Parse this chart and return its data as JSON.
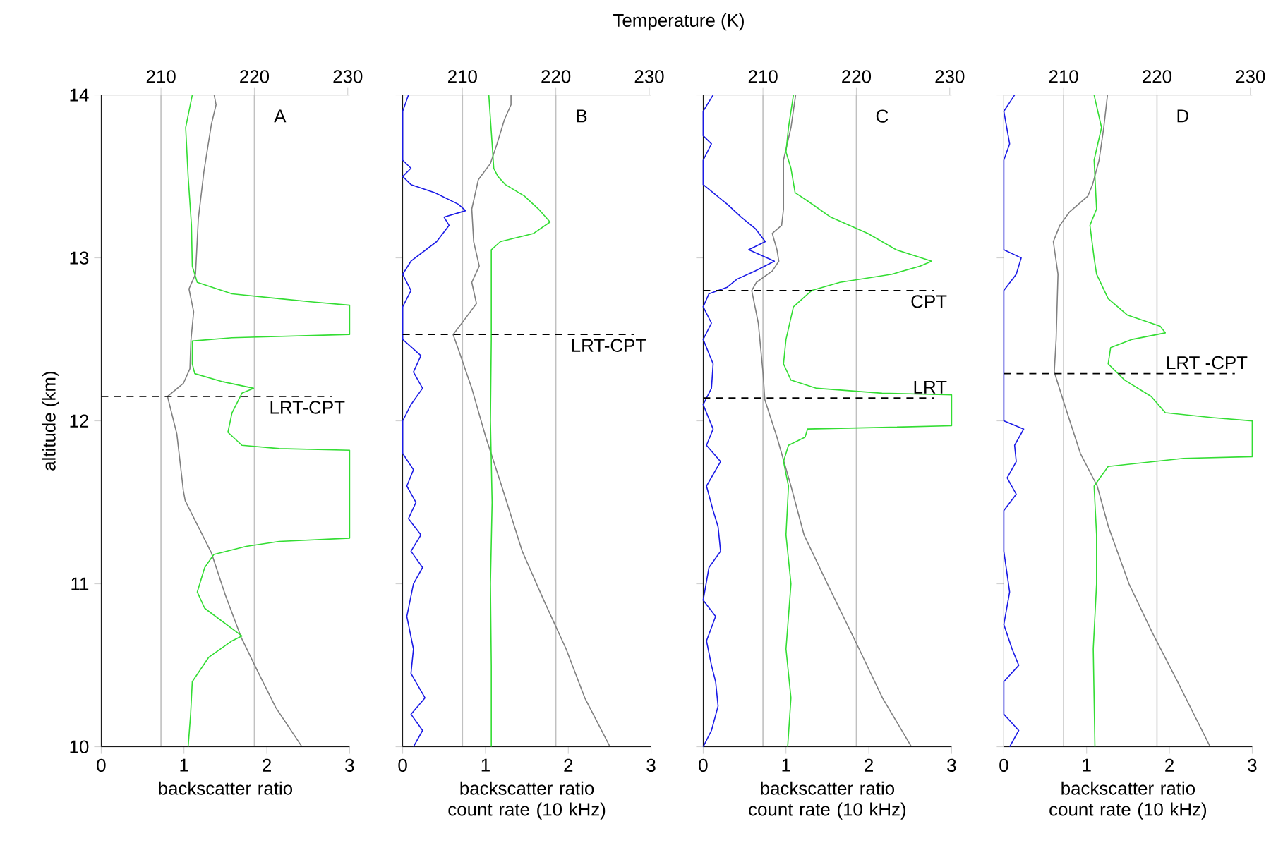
{
  "chart_data": [
    {
      "type": "line",
      "orientation": "horizontal",
      "x2label": "Temperature (K)",
      "ylabel": "altitude (km)",
      "xlabel": "backscatter ratio",
      "xlim": [
        0,
        3
      ],
      "xticks": [
        0,
        1,
        2,
        3
      ],
      "x2lim": [
        203.6,
        230.2
      ],
      "x2ticks": [
        210,
        220,
        230
      ],
      "ylim": [
        10,
        14
      ],
      "yticks": [
        10,
        11,
        12,
        13,
        14
      ],
      "annotations": [
        "A"
      ],
      "ref_lines": [
        {
          "axis": "x2",
          "value": 210,
          "color": "#c0c0c0"
        },
        {
          "axis": "x2",
          "value": 220,
          "color": "#c0c0c0"
        },
        {
          "axis": "y",
          "value": 12.15,
          "label": "LRT-CPT",
          "line_style": "dashed",
          "color": "#000000"
        }
      ],
      "series": [
        {
          "color": "#33dd33",
          "x": [
            14.0,
            13.8,
            13.5,
            13.2,
            12.95,
            12.85,
            12.78,
            12.75,
            12.73,
            12.71,
            12.53,
            12.51,
            12.49,
            12.35,
            12.29,
            12.24,
            12.2,
            12.17,
            12.05,
            11.93,
            11.85,
            11.83,
            11.82,
            11.28,
            11.26,
            11.23,
            11.18,
            11.1,
            10.95,
            10.85,
            10.68,
            10.65,
            10.55,
            10.4,
            10.2,
            10.0
          ],
          "values": [
            1.1,
            1.02,
            1.05,
            1.09,
            1.1,
            1.16,
            1.58,
            2.15,
            2.55,
            3.0,
            3.0,
            1.58,
            1.1,
            1.1,
            1.13,
            1.47,
            1.84,
            1.7,
            1.58,
            1.53,
            1.7,
            2.15,
            3.0,
            3.0,
            2.15,
            1.75,
            1.36,
            1.25,
            1.16,
            1.25,
            1.7,
            1.58,
            1.3,
            1.1,
            1.08,
            1.05
          ]
        },
        {
          "color": "#808080",
          "axis": "x2",
          "x": [
            14.0,
            13.94,
            13.82,
            13.53,
            13.24,
            12.9,
            12.81,
            12.67,
            12.49,
            12.32,
            12.23,
            12.15,
            11.92,
            11.57,
            11.51,
            11.19,
            10.93,
            10.67,
            10.47,
            10.24,
            10.0
          ],
          "values": [
            215.7,
            215.9,
            215.4,
            214.6,
            214.0,
            213.7,
            213.0,
            213.5,
            213.2,
            213.1,
            212.4,
            210.7,
            211.7,
            212.4,
            212.6,
            215.4,
            216.9,
            218.6,
            220.3,
            222.3,
            225.1
          ]
        }
      ]
    },
    {
      "type": "line",
      "orientation": "horizontal",
      "xlabel": "backscatter ratio count rate (10 kHz)",
      "xlim": [
        0,
        3
      ],
      "xticks": [
        0,
        1,
        2,
        3
      ],
      "x2lim": [
        203.6,
        230.2
      ],
      "x2ticks": [
        210,
        220,
        230
      ],
      "ylim": [
        10,
        14
      ],
      "yticks": [
        10,
        11,
        12,
        13,
        14
      ],
      "tick_labels": "x",
      "annotations": [
        "B"
      ],
      "ref_lines": [
        {
          "axis": "x2",
          "value": 210,
          "color": "#c0c0c0"
        },
        {
          "axis": "x2",
          "value": 220,
          "color": "#c0c0c0"
        },
        {
          "axis": "y",
          "value": 12.53,
          "label": "LRT-CPT",
          "line_style": "dashed",
          "color": "#000000"
        }
      ],
      "series": [
        {
          "color": "#1a1ae6",
          "x": [
            14.0,
            13.9,
            13.6,
            13.55,
            13.5,
            13.45,
            13.4,
            13.33,
            13.29,
            13.25,
            13.2,
            13.1,
            12.98,
            12.9,
            12.8,
            12.7,
            12.5,
            12.4,
            12.3,
            12.2,
            12.1,
            12.0,
            11.8,
            11.7,
            11.6,
            11.5,
            11.4,
            11.3,
            11.2,
            11.1,
            11.0,
            10.8,
            10.6,
            10.45,
            10.3,
            10.2,
            10.1,
            10.0
          ],
          "values": [
            0.07,
            0,
            0,
            0.1,
            0,
            0.1,
            0.39,
            0.67,
            0.76,
            0.5,
            0.56,
            0.41,
            0.1,
            0,
            0.1,
            0,
            0,
            0.22,
            0.13,
            0.24,
            0.1,
            0,
            0,
            0.13,
            0.05,
            0.16,
            0.07,
            0.22,
            0.1,
            0.24,
            0.13,
            0.05,
            0.13,
            0.1,
            0.27,
            0.1,
            0.24,
            0.13
          ]
        },
        {
          "color": "#33dd33",
          "x": [
            14.0,
            13.7,
            13.55,
            13.5,
            13.45,
            13.38,
            13.3,
            13.22,
            13.15,
            13.1,
            13.05,
            12.5,
            12.0,
            11.5,
            11.0,
            10.5,
            10.0
          ],
          "values": [
            1.04,
            1.08,
            1.1,
            1.15,
            1.24,
            1.47,
            1.64,
            1.78,
            1.58,
            1.18,
            1.07,
            1.07,
            1.06,
            1.08,
            1.06,
            1.07,
            1.07
          ]
        },
        {
          "color": "#808080",
          "axis": "x2",
          "x": [
            14.0,
            13.94,
            13.85,
            13.7,
            13.58,
            13.48,
            13.3,
            13.1,
            12.95,
            12.85,
            12.72,
            12.62,
            12.53,
            12.45,
            12.2,
            11.9,
            11.6,
            11.2,
            10.9,
            10.6,
            10.3,
            10.0
          ],
          "values": [
            215.2,
            215.2,
            214.5,
            213.7,
            213.0,
            211.7,
            211.0,
            211.2,
            211.8,
            211.0,
            211.5,
            210.2,
            209.0,
            209.5,
            211.0,
            212.5,
            214.2,
            216.4,
            218.7,
            221.1,
            223.1,
            225.8
          ]
        }
      ]
    },
    {
      "type": "line",
      "orientation": "horizontal",
      "xlabel": "backscatter ratio count rate (10 kHz)",
      "xlim": [
        0,
        3
      ],
      "xticks": [
        0,
        1,
        2,
        3
      ],
      "x2lim": [
        203.6,
        230.2
      ],
      "x2ticks": [
        210,
        220,
        230
      ],
      "ylim": [
        10,
        14
      ],
      "yticks": [
        10,
        11,
        12,
        13,
        14
      ],
      "tick_labels": "x",
      "annotations": [
        "C"
      ],
      "ref_lines": [
        {
          "axis": "x2",
          "value": 210,
          "color": "#c0c0c0"
        },
        {
          "axis": "x2",
          "value": 220,
          "color": "#c0c0c0"
        },
        {
          "axis": "y",
          "value": 12.8,
          "label": "CPT",
          "line_style": "dashed",
          "color": "#000000"
        },
        {
          "axis": "y",
          "value": 12.14,
          "label": "LRT",
          "line_style": "dashed",
          "color": "#000000"
        }
      ],
      "series": [
        {
          "color": "#1a1ae6",
          "x": [
            14.0,
            13.9,
            13.75,
            13.7,
            13.6,
            13.45,
            13.4,
            13.33,
            13.25,
            13.18,
            13.1,
            13.05,
            12.98,
            12.92,
            12.87,
            12.82,
            12.78,
            12.7,
            12.6,
            12.5,
            12.35,
            12.2,
            12.1,
            11.95,
            11.85,
            11.75,
            11.6,
            11.45,
            11.35,
            11.2,
            11.1,
            10.9,
            10.8,
            10.65,
            10.5,
            10.4,
            10.25,
            10.1,
            10.0
          ],
          "values": [
            0.12,
            0,
            0,
            0.1,
            0,
            0,
            0.12,
            0.29,
            0.46,
            0.63,
            0.75,
            0.55,
            0.86,
            0.63,
            0.41,
            0.29,
            0.07,
            0,
            0.1,
            0,
            0.12,
            0.1,
            0,
            0.12,
            0.04,
            0.21,
            0.04,
            0.12,
            0.18,
            0.21,
            0.07,
            0,
            0.15,
            0.04,
            0.1,
            0.15,
            0.18,
            0.1,
            0
          ]
        },
        {
          "color": "#33dd33",
          "x": [
            14.0,
            13.8,
            13.65,
            13.55,
            13.4,
            13.35,
            13.25,
            13.15,
            13.05,
            12.98,
            12.95,
            12.9,
            12.85,
            12.8,
            12.7,
            12.5,
            12.35,
            12.25,
            12.2,
            12.17,
            12.16,
            11.97,
            11.96,
            11.95,
            11.9,
            11.85,
            11.75,
            11.6,
            11.3,
            11.0,
            10.6,
            10.3,
            10.0
          ],
          "values": [
            1.09,
            1.03,
            1.0,
            1.06,
            1.11,
            1.26,
            1.54,
            1.99,
            2.33,
            2.76,
            2.62,
            2.28,
            1.65,
            1.31,
            1.09,
            1.0,
            0.97,
            1.06,
            1.37,
            2.16,
            3.0,
            3.0,
            2.16,
            1.26,
            1.23,
            1.03,
            0.97,
            1.03,
            1.0,
            1.06,
            1.0,
            1.06,
            1.02
          ]
        },
        {
          "color": "#808080",
          "axis": "x2",
          "x": [
            14.0,
            13.8,
            13.6,
            13.3,
            13.2,
            13.15,
            13.05,
            12.98,
            12.92,
            12.85,
            12.8,
            12.6,
            12.3,
            12.13,
            11.9,
            11.6,
            11.3,
            11.0,
            10.6,
            10.3,
            10.0
          ],
          "values": [
            213.5,
            213.0,
            212.2,
            212.2,
            212.0,
            211.0,
            211.5,
            211.7,
            211.0,
            209.3,
            208.8,
            209.5,
            210.0,
            210.2,
            211.5,
            213.0,
            214.4,
            216.9,
            220.3,
            222.8,
            225.9
          ]
        }
      ]
    },
    {
      "type": "line",
      "orientation": "horizontal",
      "xlabel": "backscatter ratio count rate (10 kHz)",
      "xlim": [
        0,
        3
      ],
      "xticks": [
        0,
        1,
        2,
        3
      ],
      "x2lim": [
        203.6,
        230.2
      ],
      "x2ticks": [
        210,
        220,
        230
      ],
      "ylim": [
        10,
        14
      ],
      "yticks": [
        10,
        11,
        12,
        13,
        14
      ],
      "tick_labels": "x",
      "annotations": [
        "D"
      ],
      "ref_lines": [
        {
          "axis": "x2",
          "value": 210,
          "color": "#c0c0c0"
        },
        {
          "axis": "x2",
          "value": 220,
          "color": "#c0c0c0"
        },
        {
          "axis": "y",
          "value": 12.29,
          "label": "LRT -CPT",
          "line_style": "dashed",
          "color": "#000000"
        }
      ],
      "series": [
        {
          "color": "#1a1ae6",
          "x": [
            14.0,
            13.9,
            13.7,
            13.6,
            13.05,
            13.0,
            12.9,
            12.8,
            12.5,
            12.0,
            11.95,
            11.85,
            11.75,
            11.65,
            11.55,
            11.45,
            11.2,
            10.95,
            10.75,
            10.6,
            10.5,
            10.4,
            10.2,
            10.1,
            10.0
          ],
          "values": [
            0.13,
            0,
            0.07,
            0,
            0,
            0.21,
            0.15,
            0,
            0,
            0,
            0.24,
            0.13,
            0.15,
            0.04,
            0.15,
            0,
            0,
            0.07,
            0,
            0.1,
            0.18,
            0,
            0,
            0.18,
            0.07
          ]
        },
        {
          "color": "#33dd33",
          "x": [
            14.0,
            13.8,
            13.6,
            13.3,
            13.2,
            13.0,
            12.9,
            12.75,
            12.65,
            12.58,
            12.54,
            12.5,
            12.45,
            12.35,
            12.25,
            12.15,
            12.05,
            12.02,
            12.0,
            11.78,
            11.77,
            11.72,
            11.6,
            11.3,
            11.0,
            10.6,
            10.3,
            10.0
          ],
          "values": [
            1.09,
            1.18,
            1.09,
            1.12,
            1.04,
            1.09,
            1.12,
            1.26,
            1.49,
            1.89,
            1.95,
            1.55,
            1.29,
            1.26,
            1.46,
            1.78,
            1.95,
            2.52,
            3.0,
            3.0,
            2.17,
            1.26,
            1.09,
            1.12,
            1.12,
            1.08,
            1.09,
            1.1
          ]
        },
        {
          "color": "#808080",
          "axis": "x2",
          "x": [
            14.0,
            13.8,
            13.6,
            13.45,
            13.38,
            13.28,
            13.2,
            13.1,
            12.9,
            12.5,
            12.3,
            12.1,
            11.8,
            11.6,
            11.35,
            11.0,
            10.7,
            10.4,
            10.0
          ],
          "values": [
            214.7,
            214.3,
            213.8,
            213.1,
            212.6,
            210.6,
            209.6,
            208.9,
            209.4,
            209.2,
            209.0,
            210.1,
            211.8,
            213.6,
            214.8,
            217.0,
            219.5,
            222.2,
            225.7
          ]
        }
      ]
    }
  ]
}
